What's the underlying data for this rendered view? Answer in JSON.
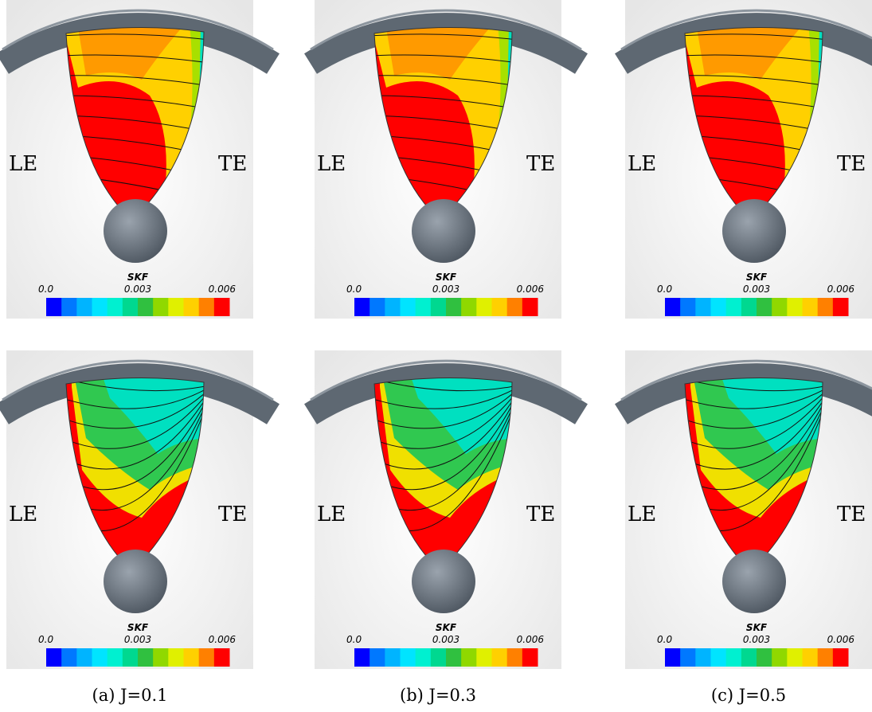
{
  "panels": [
    {
      "left_label": "LE",
      "right_label": "TE",
      "colorbar": {
        "title": "SKF",
        "tick_labels": [
          "0.0",
          "0.003",
          "0.006"
        ]
      }
    },
    {
      "left_label": "LE",
      "right_label": "TE",
      "colorbar": {
        "title": "SKF",
        "tick_labels": [
          "0.0",
          "0.003",
          "0.006"
        ]
      }
    },
    {
      "left_label": "LE",
      "right_label": "TE",
      "colorbar": {
        "title": "SKF",
        "tick_labels": [
          "0.0",
          "0.003",
          "0.006"
        ]
      }
    },
    {
      "left_label": "LE",
      "right_label": "TE",
      "colorbar": {
        "title": "SKF",
        "tick_labels": [
          "0.0",
          "0.003",
          "0.006"
        ]
      }
    },
    {
      "left_label": "LE",
      "right_label": "TE",
      "colorbar": {
        "title": "SKF",
        "tick_labels": [
          "0.0",
          "0.003",
          "0.006"
        ]
      }
    },
    {
      "left_label": "LE",
      "right_label": "TE",
      "colorbar": {
        "title": "SKF",
        "tick_labels": [
          "0.0",
          "0.003",
          "0.006"
        ]
      }
    }
  ],
  "colorbar_colors": [
    "#0000ff",
    "#0078ff",
    "#00b4ff",
    "#00e4ff",
    "#00f0d0",
    "#00d890",
    "#30c040",
    "#90d800",
    "#e0f000",
    "#ffd000",
    "#ff8000",
    "#ff0000"
  ],
  "captions": [
    "(a) J=0.1",
    "(b) J=0.3",
    "(c) J=0.5"
  ]
}
